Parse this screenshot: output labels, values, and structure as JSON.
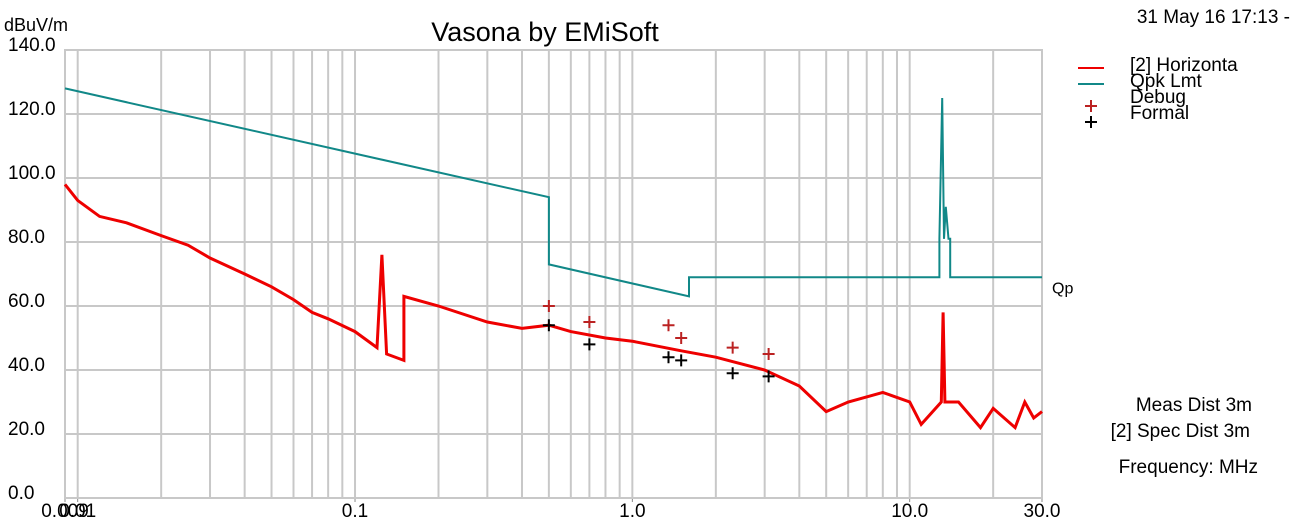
{
  "chart_data": {
    "type": "line",
    "title": "Vasona by EMiSoft",
    "y_label": "dBuV/m",
    "timestamp": "31 May 16 17:13 -",
    "x_label": "Frequency: MHz",
    "notes": [
      "Meas Dist 3m",
      "[2] Spec Dist 3m"
    ],
    "limit_label": "Qp",
    "log_x": true,
    "grid": true,
    "legend": "top-right",
    "xlim": [
      0.009,
      30
    ],
    "ylim": [
      0,
      140
    ],
    "xticks": [
      {
        "value": 0.009,
        "label": "0.009"
      },
      0.01,
      0.1,
      {
        "value": 1,
        "label": "1.0"
      },
      {
        "value": 10,
        "label": "10.0"
      },
      {
        "value": 30,
        "label": "30.0"
      }
    ],
    "yticks": [
      {
        "value": 0,
        "label": "0.0"
      },
      {
        "value": 20,
        "label": "20.0"
      },
      {
        "value": 40,
        "label": "40.0"
      },
      {
        "value": 60,
        "label": "60.0"
      },
      {
        "value": 80,
        "label": "80.0"
      },
      {
        "value": 100,
        "label": "100.0"
      },
      {
        "value": 120,
        "label": "120.0"
      },
      {
        "value": 140,
        "label": "140.0"
      }
    ],
    "series": [
      {
        "name": "[2] Horizonta",
        "color": "#ee0000",
        "marker": "line",
        "x": [
          0.009,
          0.01,
          0.012,
          0.015,
          0.02,
          0.025,
          0.03,
          0.04,
          0.05,
          0.06,
          0.07,
          0.08,
          0.1,
          0.12,
          0.125,
          0.13,
          0.15,
          0.15,
          0.2,
          0.3,
          0.4,
          0.5,
          0.6,
          0.8,
          1,
          1.5,
          2,
          3,
          4,
          5,
          6,
          8,
          10,
          11,
          13,
          13.2,
          13.4,
          15,
          18,
          20,
          24,
          26,
          28,
          30
        ],
        "values": [
          98,
          93,
          88,
          86,
          82,
          79,
          75,
          70,
          66,
          62,
          58,
          56,
          52,
          47,
          76,
          45,
          43,
          63,
          60,
          55,
          53,
          54,
          52,
          50,
          49,
          46,
          44,
          40,
          35,
          27,
          30,
          33,
          30,
          23,
          30,
          58,
          30,
          30,
          22,
          28,
          22,
          30,
          25,
          27
        ]
      },
      {
        "name": "Qpk Lmt",
        "color": "#118888",
        "marker": "line",
        "x": [
          0.009,
          0.5,
          0.5,
          1.6,
          1.6,
          12.8,
          12.8,
          13.1,
          13.3,
          13.5,
          13.8,
          14,
          14,
          30
        ],
        "values": [
          128,
          94,
          73,
          63,
          69,
          69,
          81,
          125,
          81,
          91,
          81,
          81,
          69,
          69
        ]
      },
      {
        "name": "Debug",
        "color": "#bb2222",
        "marker": "plus",
        "x": [
          0.5,
          0.7,
          1.35,
          1.5,
          2.3,
          3.1
        ],
        "values": [
          60,
          55,
          54,
          50,
          47,
          45
        ]
      },
      {
        "name": "Formal",
        "color": "#000000",
        "marker": "plus",
        "x": [
          0.5,
          0.7,
          1.35,
          1.5,
          2.3,
          3.1
        ],
        "values": [
          54,
          48,
          44,
          43,
          39,
          38
        ]
      }
    ]
  }
}
